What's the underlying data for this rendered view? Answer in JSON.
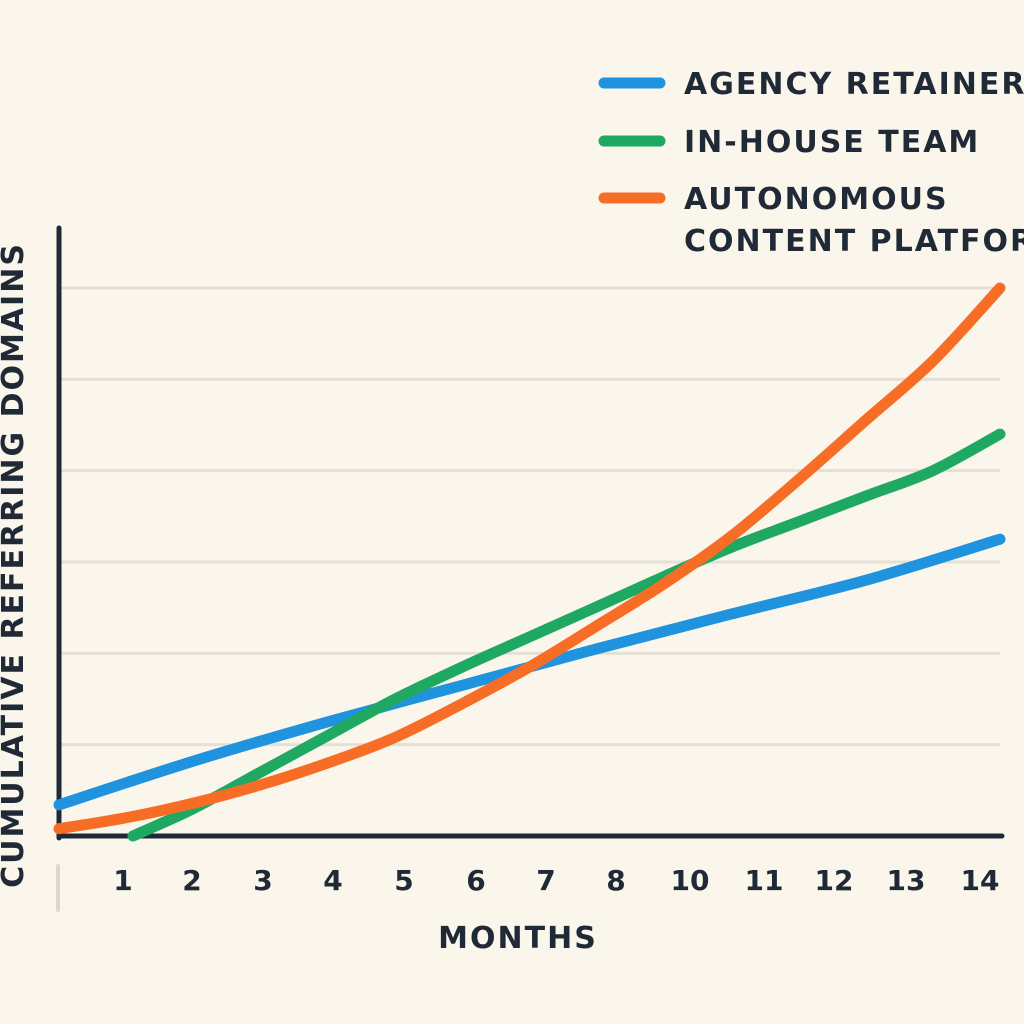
{
  "chart_data": {
    "type": "line",
    "title": "",
    "xlabel": "MONTHS",
    "ylabel": "CUMULATIVE REFERRING DOMAINS",
    "x_tick_labels": [
      "1",
      "2",
      "3",
      "4",
      "5",
      "6",
      "7",
      "8",
      "10",
      "11",
      "12",
      "13",
      "14"
    ],
    "xlim": [
      0,
      14
    ],
    "ylim": [
      0,
      600
    ],
    "y_tick_labels": [],
    "grid": "horizontal",
    "legend_position": "top-right",
    "series": [
      {
        "name": "AGENCY RETAINER",
        "color": "#1f93dd",
        "x": [
          0,
          2,
          4,
          6,
          8,
          10,
          12,
          14
        ],
        "y": [
          34,
          82,
          125,
          165,
          205,
          243,
          280,
          325
        ]
      },
      {
        "name": "IN-HOUSE TEAM",
        "color": "#1ea862",
        "x": [
          1.1,
          2,
          3,
          4,
          5,
          6,
          7,
          8,
          9,
          10,
          11,
          12,
          13,
          14
        ],
        "y": [
          0,
          30,
          70,
          110,
          150,
          185,
          218,
          251,
          284,
          316,
          344,
          372,
          400,
          440
        ]
      },
      {
        "name": "AUTONOMOUS\nCONTENT PLATFORM",
        "color": "#f86d26",
        "x": [
          0,
          1,
          2,
          3,
          4,
          5,
          6,
          7,
          8,
          9,
          10,
          11,
          12,
          13,
          14
        ],
        "y": [
          8,
          20,
          36,
          56,
          80,
          108,
          145,
          185,
          230,
          276,
          328,
          390,
          455,
          520,
          600
        ]
      }
    ]
  },
  "axis_stub_label": "l"
}
